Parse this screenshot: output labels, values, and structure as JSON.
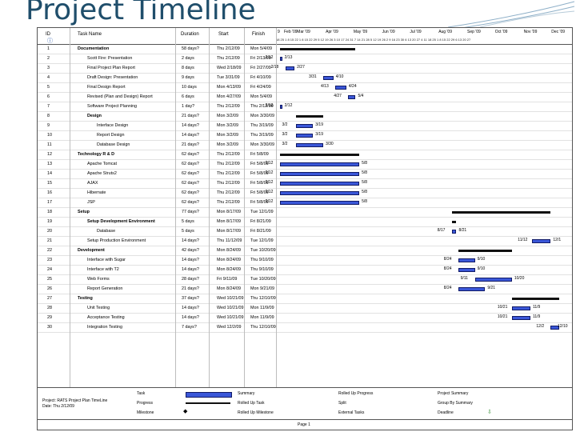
{
  "slide": {
    "title": "Project Timeline"
  },
  "header": {
    "id": "ID",
    "task_name": "Task Name",
    "duration": "Duration",
    "start": "Start",
    "finish": "Finish",
    "months": [
      "Feb '09",
      "Mar '09",
      "Apr '09",
      "May '09",
      "Jun '09",
      "Jul '09",
      "Aug '09",
      "Sep '09",
      "Oct '09",
      "Nov '09",
      "Dec '09"
    ],
    "lead_month": "9",
    "day_ticks": "18 25 1 8 15 22 1 8 15 22 29 5 12 19 26 3 10 17 24 31 7 14 21 28 5 12 19 26 2 9 16 23 30 6 13 20 27 4 11 18 25 1 8 15 22 29 6 13 20 27"
  },
  "tasks": [
    {
      "id": "1",
      "name": "Documentation",
      "duration": "58 days?",
      "start": "Thu 2/12/09",
      "finish": "Mon 5/4/09",
      "summary": true,
      "indent": 0
    },
    {
      "id": "2",
      "name": "Scott Fire: Presentation",
      "duration": "2 days",
      "start": "Thu 2/12/09",
      "finish": "Fri 2/13/09",
      "indent": 1
    },
    {
      "id": "3",
      "name": "Final Project Plan Report",
      "duration": "8 days",
      "start": "Wed 2/18/09",
      "finish": "Fri 2/27/09",
      "indent": 1
    },
    {
      "id": "4",
      "name": "Draft Design: Presentation",
      "duration": "9 days",
      "start": "Tue 3/31/09",
      "finish": "Fri 4/10/09",
      "indent": 1
    },
    {
      "id": "5",
      "name": "Final Design Report",
      "duration": "10 days",
      "start": "Mon 4/13/09",
      "finish": "Fri 4/24/09",
      "indent": 1
    },
    {
      "id": "6",
      "name": "Revised (Plan and Design) Report",
      "duration": "6 days",
      "start": "Mon 4/27/09",
      "finish": "Mon 5/4/09",
      "indent": 1
    },
    {
      "id": "7",
      "name": "Software Project Planning",
      "duration": "1 day?",
      "start": "Thu 2/12/09",
      "finish": "Thu 2/12/09",
      "indent": 1
    },
    {
      "id": "8",
      "name": "Design",
      "duration": "21 days?",
      "start": "Mon 3/2/09",
      "finish": "Mon 3/30/09",
      "summary": true,
      "indent": 1
    },
    {
      "id": "9",
      "name": "Interface Design",
      "duration": "14 days?",
      "start": "Mon 3/2/09",
      "finish": "Thu 3/19/09",
      "indent": 2
    },
    {
      "id": "10",
      "name": "Report Design",
      "duration": "14 days?",
      "start": "Mon 3/2/09",
      "finish": "Thu 3/19/09",
      "indent": 2
    },
    {
      "id": "11",
      "name": "Database Design",
      "duration": "21 days?",
      "start": "Mon 3/2/09",
      "finish": "Mon 3/30/09",
      "indent": 2
    },
    {
      "id": "12",
      "name": "Technology R & D",
      "duration": "62 days?",
      "start": "Thu 2/12/09",
      "finish": "Fri 5/8/09",
      "summary": true,
      "indent": 0
    },
    {
      "id": "13",
      "name": "Apache Tomcat",
      "duration": "62 days?",
      "start": "Thu 2/12/09",
      "finish": "Fri 5/8/09",
      "indent": 1
    },
    {
      "id": "14",
      "name": "Apache Struts2",
      "duration": "62 days?",
      "start": "Thu 2/12/09",
      "finish": "Fri 5/8/09",
      "indent": 1
    },
    {
      "id": "15",
      "name": "AJAX",
      "duration": "62 days?",
      "start": "Thu 2/12/09",
      "finish": "Fri 5/8/09",
      "indent": 1
    },
    {
      "id": "16",
      "name": "Hibernate",
      "duration": "62 days?",
      "start": "Thu 2/12/09",
      "finish": "Fri 5/8/09",
      "indent": 1
    },
    {
      "id": "17",
      "name": "JSP",
      "duration": "62 days?",
      "start": "Thu 2/12/09",
      "finish": "Fri 5/8/09",
      "indent": 1
    },
    {
      "id": "18",
      "name": "Setup",
      "duration": "77 days?",
      "start": "Mon 8/17/09",
      "finish": "Tue 12/1/09",
      "summary": true,
      "indent": 0
    },
    {
      "id": "19",
      "name": "Setup Development Environment",
      "duration": "5 days",
      "start": "Mon 8/17/09",
      "finish": "Fri 8/21/09",
      "summary": true,
      "indent": 1
    },
    {
      "id": "20",
      "name": "Database",
      "duration": "5 days",
      "start": "Mon 8/17/09",
      "finish": "Fri 8/21/09",
      "indent": 2
    },
    {
      "id": "21",
      "name": "Setup Production Environment",
      "duration": "14 days?",
      "start": "Thu 11/12/09",
      "finish": "Tue 12/1/09",
      "indent": 1
    },
    {
      "id": "22",
      "name": "Development",
      "duration": "42 days?",
      "start": "Mon 8/24/09",
      "finish": "Tue 10/20/09",
      "summary": true,
      "indent": 0
    },
    {
      "id": "23",
      "name": "Interface with Sugar",
      "duration": "14 days?",
      "start": "Mon 8/24/09",
      "finish": "Thu 9/10/09",
      "indent": 1
    },
    {
      "id": "24",
      "name": "Interface with T2",
      "duration": "14 days?",
      "start": "Mon 8/24/09",
      "finish": "Thu 9/10/09",
      "indent": 1
    },
    {
      "id": "25",
      "name": "Web Forms",
      "duration": "28 days?",
      "start": "Fri 9/11/09",
      "finish": "Tue 10/20/09",
      "indent": 1
    },
    {
      "id": "26",
      "name": "Report Generation",
      "duration": "21 days?",
      "start": "Mon 8/24/09",
      "finish": "Mon 9/21/09",
      "indent": 1
    },
    {
      "id": "27",
      "name": "Testing",
      "duration": "37 days?",
      "start": "Wed 10/21/09",
      "finish": "Thu 12/10/09",
      "summary": true,
      "indent": 0
    },
    {
      "id": "28",
      "name": "Unit Testing",
      "duration": "14 days?",
      "start": "Wed 10/21/09",
      "finish": "Mon 11/9/09",
      "indent": 1
    },
    {
      "id": "29",
      "name": "Acceptance Testing",
      "duration": "14 days?",
      "start": "Wed 10/21/09",
      "finish": "Mon 11/9/09",
      "indent": 1
    },
    {
      "id": "30",
      "name": "Integration Testing",
      "duration": "7 days?",
      "start": "Wed 12/2/09",
      "finish": "Thu 12/10/09",
      "indent": 1
    }
  ],
  "gantt": {
    "rows": [
      {
        "id": "1",
        "summary": true,
        "from": "2009-02-12",
        "to": "2009-05-04",
        "left": "",
        "right": ""
      },
      {
        "id": "2",
        "from": "2009-02-12",
        "to": "2009-02-13",
        "left": "2/12",
        "right": "2/13"
      },
      {
        "id": "3",
        "from": "2009-02-18",
        "to": "2009-02-27",
        "left": "2/18",
        "right": "2/27"
      },
      {
        "id": "4",
        "from": "2009-03-31",
        "to": "2009-04-10",
        "left": "3/31",
        "right": "4/10"
      },
      {
        "id": "5",
        "from": "2009-04-13",
        "to": "2009-04-24",
        "left": "4/13",
        "right": "4/24"
      },
      {
        "id": "6",
        "from": "2009-04-27",
        "to": "2009-05-04",
        "left": "4/27",
        "right": "5/4"
      },
      {
        "id": "7",
        "from": "2009-02-12",
        "to": "2009-02-12",
        "left": "2/12",
        "right": "2/12"
      },
      {
        "id": "8",
        "summary": true,
        "from": "2009-03-02",
        "to": "2009-03-30",
        "left": "",
        "right": ""
      },
      {
        "id": "9",
        "from": "2009-03-02",
        "to": "2009-03-19",
        "left": "3/2",
        "right": "3/19"
      },
      {
        "id": "10",
        "from": "2009-03-02",
        "to": "2009-03-19",
        "left": "3/2",
        "right": "3/19"
      },
      {
        "id": "11",
        "from": "2009-03-02",
        "to": "2009-03-30",
        "left": "3/2",
        "right": "3/30"
      },
      {
        "id": "12",
        "summary": true,
        "from": "2009-02-12",
        "to": "2009-05-08",
        "left": "",
        "right": ""
      },
      {
        "id": "13",
        "from": "2009-02-12",
        "to": "2009-05-08",
        "left": "2/12",
        "right": "5/8"
      },
      {
        "id": "14",
        "from": "2009-02-12",
        "to": "2009-05-08",
        "left": "2/12",
        "right": "5/8"
      },
      {
        "id": "15",
        "from": "2009-02-12",
        "to": "2009-05-08",
        "left": "2/12",
        "right": "5/8"
      },
      {
        "id": "16",
        "from": "2009-02-12",
        "to": "2009-05-08",
        "left": "2/12",
        "right": "5/8"
      },
      {
        "id": "17",
        "from": "2009-02-12",
        "to": "2009-05-08",
        "left": "2/12",
        "right": "5/8"
      },
      {
        "id": "18",
        "summary": true,
        "from": "2009-08-17",
        "to": "2009-12-01",
        "left": "",
        "right": ""
      },
      {
        "id": "19",
        "summary": true,
        "from": "2009-08-17",
        "to": "2009-08-21",
        "left": "",
        "right": ""
      },
      {
        "id": "20",
        "from": "2009-08-17",
        "to": "2009-08-21",
        "left": "8/17",
        "right": "8/21"
      },
      {
        "id": "21",
        "from": "2009-11-12",
        "to": "2009-12-01",
        "left": "11/12",
        "right": "12/1"
      },
      {
        "id": "22",
        "summary": true,
        "from": "2009-08-24",
        "to": "2009-10-20",
        "left": "",
        "right": ""
      },
      {
        "id": "23",
        "from": "2009-08-24",
        "to": "2009-09-10",
        "left": "8/24",
        "right": "9/10"
      },
      {
        "id": "24",
        "from": "2009-08-24",
        "to": "2009-09-10",
        "left": "8/24",
        "right": "9/10"
      },
      {
        "id": "25",
        "from": "2009-09-11",
        "to": "2009-10-20",
        "left": "9/11",
        "right": "10/20"
      },
      {
        "id": "26",
        "from": "2009-08-24",
        "to": "2009-09-21",
        "left": "8/24",
        "right": "9/21"
      },
      {
        "id": "27",
        "summary": true,
        "from": "2009-10-21",
        "to": "2009-12-10",
        "left": "",
        "right": ""
      },
      {
        "id": "28",
        "from": "2009-10-21",
        "to": "2009-11-09",
        "left": "10/21",
        "right": "11/9"
      },
      {
        "id": "29",
        "from": "2009-10-21",
        "to": "2009-11-09",
        "left": "10/21",
        "right": "11/9"
      },
      {
        "id": "30",
        "from": "2009-12-02",
        "to": "2009-12-10",
        "left": "12/2",
        "right": "12/10"
      }
    ]
  },
  "legend": {
    "project_line1": "Project: RATS Project Plan TimeLine",
    "project_line2": "Date: Thu 2/12/09",
    "task": "Task",
    "progress": "Progress",
    "milestone": "Milestone",
    "summary": "Summary",
    "rolled_task": "Rolled Up Task",
    "rolled_milestone": "Rolled Up Milestone",
    "rolled_progress": "Rolled Up Progress",
    "split": "Split",
    "external": "External Tasks",
    "project_summary": "Project Summary",
    "group_summary": "Group By Summary",
    "deadline": "Deadline"
  },
  "footer": {
    "page": "Page 1"
  },
  "colors": {
    "bar": "#3a57d8",
    "title": "#1f4e6b"
  }
}
